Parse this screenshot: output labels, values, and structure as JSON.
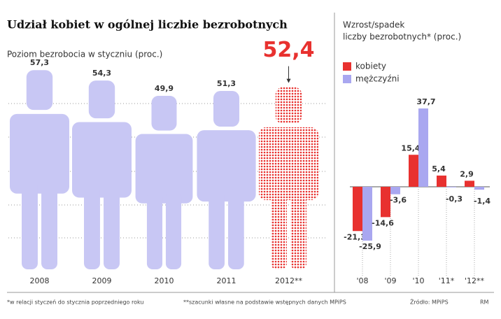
{
  "title": "Udział kobiet w ogólnej liczbie bezrobotnych",
  "footnotes": [
    "*w relacji styczeń do stycznia poprzedniego roku",
    "**szacunki własne na podstawie wstępnych danych MPiPS",
    "Źródło: MPiPS",
    "RM"
  ],
  "chart_data": [
    {
      "type": "pictogram",
      "subtitle": "Poziom bezrobocia w styczniu (proc.)",
      "categories": [
        "2008",
        "2009",
        "2010",
        "2011",
        "2012**"
      ],
      "values": [
        57.3,
        54.3,
        49.9,
        51.3,
        52.4
      ],
      "value_labels": [
        "57,3",
        "54,3",
        "49,9",
        "51,3",
        "52,4"
      ],
      "colors": [
        "#c8c7f4",
        "#c8c7f4",
        "#c8c7f4",
        "#c8c7f4",
        "#e8312f"
      ],
      "dotted": [
        false,
        false,
        false,
        false,
        true
      ]
    },
    {
      "type": "bar",
      "title": [
        "Wzrost/spadek",
        "liczby bezrobotnych* (proc.)"
      ],
      "categories": [
        "'08",
        "'09",
        "'10",
        "'11*",
        "'12**"
      ],
      "series": [
        {
          "name": "kobiety",
          "color": "#e8312f",
          "values": [
            -21.3,
            -14.6,
            15.4,
            5.4,
            2.9
          ],
          "value_labels": [
            "-21,3",
            "-14,6",
            "15,4",
            "5,4",
            "2,9"
          ]
        },
        {
          "name": "mężczyźni",
          "color": "#a9a7f0",
          "values": [
            -25.9,
            -3.6,
            37.7,
            -0.3,
            -1.4
          ],
          "value_labels": [
            "-25,9",
            "-3,6",
            "37,7",
            "-0,3",
            "-1,4"
          ]
        }
      ]
    }
  ]
}
